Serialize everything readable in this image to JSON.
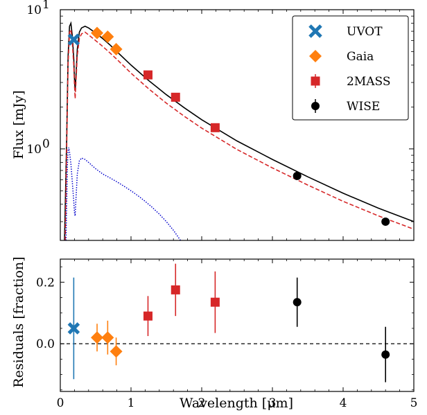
{
  "chart_data": [
    {
      "panel": "sed",
      "type": "scatter",
      "xlabel": "",
      "ylabel": "Flux [mJy]",
      "yscale": "log",
      "xlim": [
        0,
        5
      ],
      "ylim": [
        0.22,
        10
      ],
      "x_ticks": [
        0,
        1,
        2,
        3,
        4,
        5
      ],
      "y_ticks": [
        {
          "value": 1,
          "label": "10",
          "sup": "0"
        },
        {
          "value": 10,
          "label": "10",
          "sup": "1"
        }
      ],
      "legend": {
        "position": "top-right"
      },
      "series": [
        {
          "name": "UVOT",
          "marker": "x",
          "color": "#1f77b4",
          "points": [
            {
              "x": 0.19,
              "y": 6.1
            }
          ]
        },
        {
          "name": "Gaia",
          "marker": "diamond",
          "color": "#ff7f0e",
          "points": [
            {
              "x": 0.52,
              "y": 6.8
            },
            {
              "x": 0.67,
              "y": 6.4
            },
            {
              "x": 0.79,
              "y": 5.2
            }
          ]
        },
        {
          "name": "2MASS",
          "marker": "square",
          "color": "#d62728",
          "points": [
            {
              "x": 1.24,
              "y": 3.4
            },
            {
              "x": 1.63,
              "y": 2.35
            },
            {
              "x": 2.19,
              "y": 1.42
            }
          ]
        },
        {
          "name": "WISE",
          "marker": "circle",
          "color": "#000000",
          "points": [
            {
              "x": 3.35,
              "y": 0.64
            },
            {
              "x": 4.6,
              "y": 0.3
            }
          ]
        }
      ],
      "model_curves": [
        {
          "style": "solid",
          "color": "#000000",
          "points": [
            [
              0.06,
              0.22
            ],
            [
              0.09,
              1.2
            ],
            [
              0.11,
              4.6
            ],
            [
              0.13,
              7.6
            ],
            [
              0.15,
              8.0
            ],
            [
              0.17,
              6.5
            ],
            [
              0.19,
              4.5
            ],
            [
              0.2,
              3.2
            ],
            [
              0.21,
              2.6
            ],
            [
              0.22,
              3.2
            ],
            [
              0.24,
              5.2
            ],
            [
              0.27,
              6.9
            ],
            [
              0.3,
              7.4
            ],
            [
              0.35,
              7.6
            ],
            [
              0.4,
              7.4
            ],
            [
              0.5,
              6.8
            ],
            [
              0.6,
              6.2
            ],
            [
              0.7,
              5.6
            ],
            [
              0.8,
              5.0
            ],
            [
              1.0,
              4.0
            ],
            [
              1.25,
              3.1
            ],
            [
              1.5,
              2.45
            ],
            [
              1.75,
              1.98
            ],
            [
              2.0,
              1.62
            ],
            [
              2.5,
              1.14
            ],
            [
              3.0,
              0.84
            ],
            [
              3.5,
              0.63
            ],
            [
              4.0,
              0.48
            ],
            [
              4.5,
              0.375
            ],
            [
              5.0,
              0.3
            ]
          ]
        },
        {
          "style": "dashed",
          "color": "#d62728",
          "points": [
            [
              0.07,
              0.22
            ],
            [
              0.09,
              1.0
            ],
            [
              0.11,
              4.0
            ],
            [
              0.13,
              6.9
            ],
            [
              0.15,
              7.2
            ],
            [
              0.17,
              5.8
            ],
            [
              0.19,
              4.0
            ],
            [
              0.2,
              2.9
            ],
            [
              0.21,
              2.3
            ],
            [
              0.22,
              2.9
            ],
            [
              0.24,
              4.7
            ],
            [
              0.27,
              6.2
            ],
            [
              0.3,
              6.7
            ],
            [
              0.35,
              6.9
            ],
            [
              0.4,
              6.6
            ],
            [
              0.5,
              6.0
            ],
            [
              0.6,
              5.45
            ],
            [
              0.7,
              4.9
            ],
            [
              0.8,
              4.4
            ],
            [
              1.0,
              3.5
            ],
            [
              1.25,
              2.7
            ],
            [
              1.5,
              2.13
            ],
            [
              1.75,
              1.72
            ],
            [
              2.0,
              1.41
            ],
            [
              2.5,
              0.99
            ],
            [
              3.0,
              0.73
            ],
            [
              3.5,
              0.55
            ],
            [
              4.0,
              0.42
            ],
            [
              4.5,
              0.33
            ],
            [
              5.0,
              0.265
            ]
          ]
        },
        {
          "style": "dotted",
          "color": "#0000cc",
          "points": [
            [
              0.08,
              0.22
            ],
            [
              0.09,
              0.4
            ],
            [
              0.1,
              0.75
            ],
            [
              0.11,
              0.98
            ],
            [
              0.12,
              1.02
            ],
            [
              0.13,
              0.95
            ],
            [
              0.15,
              0.78
            ],
            [
              0.17,
              0.58
            ],
            [
              0.19,
              0.42
            ],
            [
              0.2,
              0.35
            ],
            [
              0.21,
              0.33
            ],
            [
              0.22,
              0.42
            ],
            [
              0.24,
              0.66
            ],
            [
              0.27,
              0.82
            ],
            [
              0.3,
              0.86
            ],
            [
              0.35,
              0.84
            ],
            [
              0.4,
              0.8
            ],
            [
              0.5,
              0.72
            ],
            [
              0.6,
              0.66
            ],
            [
              0.7,
              0.62
            ],
            [
              0.8,
              0.58
            ],
            [
              0.9,
              0.54
            ],
            [
              1.0,
              0.5
            ],
            [
              1.1,
              0.46
            ],
            [
              1.2,
              0.42
            ],
            [
              1.3,
              0.38
            ],
            [
              1.4,
              0.34
            ],
            [
              1.5,
              0.3
            ],
            [
              1.6,
              0.26
            ],
            [
              1.7,
              0.22
            ]
          ]
        }
      ]
    },
    {
      "panel": "residuals",
      "type": "scatter",
      "xlabel": "Wavelength [μm]",
      "ylabel": "Residuals [fraction]",
      "xlim": [
        0,
        5
      ],
      "ylim": [
        -0.155,
        0.275
      ],
      "x_ticks": [
        0,
        1,
        2,
        3,
        4,
        5
      ],
      "y_ticks": [
        {
          "value": 0.0,
          "label": "0.0"
        },
        {
          "value": 0.2,
          "label": "0.2"
        }
      ],
      "zero_line": true,
      "series": [
        {
          "name": "UVOT",
          "marker": "x",
          "color": "#1f77b4",
          "points": [
            {
              "x": 0.19,
              "y": 0.05,
              "err": 0.165
            }
          ]
        },
        {
          "name": "Gaia",
          "marker": "diamond",
          "color": "#ff7f0e",
          "points": [
            {
              "x": 0.52,
              "y": 0.02,
              "err": 0.045
            },
            {
              "x": 0.67,
              "y": 0.02,
              "err": 0.055
            },
            {
              "x": 0.79,
              "y": -0.025,
              "err": 0.045
            }
          ]
        },
        {
          "name": "2MASS",
          "marker": "square",
          "color": "#d62728",
          "points": [
            {
              "x": 1.24,
              "y": 0.09,
              "err": 0.065
            },
            {
              "x": 1.63,
              "y": 0.175,
              "err": 0.085
            },
            {
              "x": 2.19,
              "y": 0.135,
              "err": 0.1
            }
          ]
        },
        {
          "name": "WISE",
          "marker": "circle",
          "color": "#000000",
          "points": [
            {
              "x": 3.35,
              "y": 0.135,
              "err": 0.08
            },
            {
              "x": 4.6,
              "y": -0.035,
              "err": 0.09
            }
          ]
        }
      ]
    }
  ]
}
